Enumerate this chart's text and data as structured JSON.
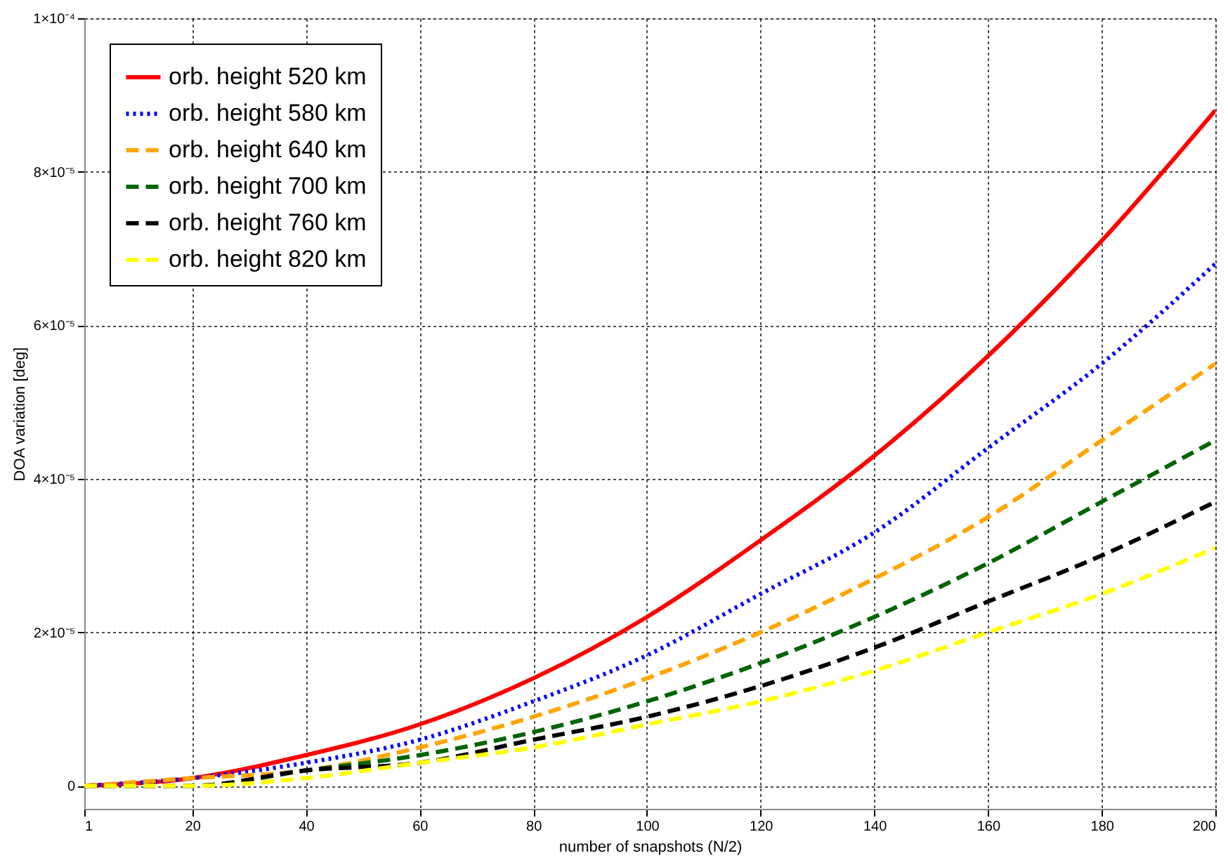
{
  "chart_data": {
    "type": "line",
    "xlabel": "number of snapshots (N/2)",
    "ylabel": "DOA variation [deg]",
    "x": [
      1,
      20,
      40,
      60,
      80,
      100,
      120,
      140,
      160,
      180,
      200
    ],
    "series": [
      {
        "name": "orb. height 520 km",
        "color": "#ff0000",
        "line_style": "solid",
        "values": [
          0,
          1e-06,
          4e-06,
          8e-06,
          1.4e-05,
          2.2e-05,
          3.2e-05,
          4.3e-05,
          5.6e-05,
          7.1e-05,
          8.8e-05
        ]
      },
      {
        "name": "orb. height 580 km",
        "color": "#0000ff",
        "line_style": "dotted",
        "values": [
          0,
          1e-06,
          3e-06,
          6e-06,
          1.1e-05,
          1.7e-05,
          2.5e-05,
          3.3e-05,
          4.4e-05,
          5.5e-05,
          6.8e-05
        ]
      },
      {
        "name": "orb. height 640 km",
        "color": "#ffa500",
        "line_style": "dashed",
        "values": [
          0,
          1e-06,
          2e-06,
          5e-06,
          9e-06,
          1.4e-05,
          2e-05,
          2.7e-05,
          3.5e-05,
          4.5e-05,
          5.5e-05
        ]
      },
      {
        "name": "orb. height 700 km",
        "color": "#006400",
        "line_style": "dashed",
        "values": [
          0,
          0,
          2e-06,
          4e-06,
          7e-06,
          1.1e-05,
          1.6e-05,
          2.2e-05,
          2.9e-05,
          3.7e-05,
          4.5e-05
        ]
      },
      {
        "name": "orb. height 760 km",
        "color": "#000000",
        "line_style": "dashed",
        "values": [
          0,
          0,
          2e-06,
          3e-06,
          6e-06,
          9e-06,
          1.3e-05,
          1.8e-05,
          2.4e-05,
          3e-05,
          3.7e-05
        ]
      },
      {
        "name": "orb. height 820 km",
        "color": "#ffff00",
        "line_style": "dashed",
        "values": [
          0,
          0,
          1e-06,
          3e-06,
          5e-06,
          8e-06,
          1.1e-05,
          1.5e-05,
          2e-05,
          2.5e-05,
          3.1e-05
        ]
      }
    ],
    "xlim": [
      1,
      200
    ],
    "xticks": [
      1,
      20,
      40,
      60,
      80,
      100,
      120,
      140,
      160,
      180,
      200
    ],
    "ylim": [
      -3e-06,
      0.0001
    ],
    "yticks": [
      0,
      {
        "value": 2e-05,
        "label": "2×10⁻⁵"
      },
      {
        "value": 4e-05,
        "label": "4×10⁻⁵"
      },
      {
        "value": 6e-05,
        "label": "6×10⁻⁵"
      },
      {
        "value": 8e-05,
        "label": "8×10⁻⁵"
      },
      {
        "value": 0.0001,
        "label": "1×10⁻⁴"
      }
    ],
    "grid": true,
    "legend": "top left",
    "marker": "none"
  }
}
